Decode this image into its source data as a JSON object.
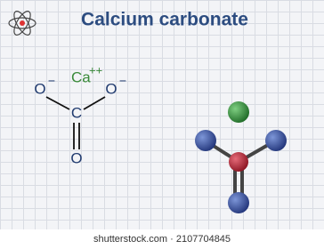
{
  "header": {
    "title": "Calcium carbonate"
  },
  "formula": {
    "cation": {
      "symbol": "Ca",
      "charge": "++"
    },
    "anions": [
      {
        "symbol": "O",
        "charge": "−"
      },
      {
        "symbol": "O",
        "charge": "−"
      }
    ],
    "carbon": "C",
    "double_oxygen": "O"
  },
  "watermark": "shutterstock.com · 2107704845"
}
